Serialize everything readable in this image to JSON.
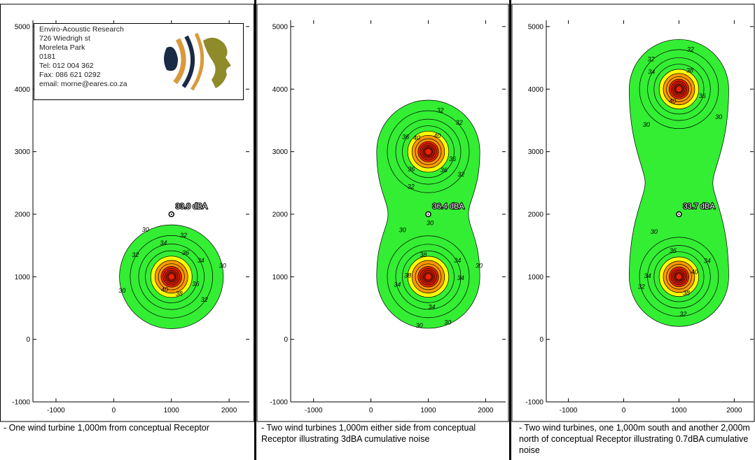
{
  "info_box": {
    "lines": [
      "Enviro-Acoustic Research",
      "726 Wiedrigh st",
      "Moreleta Park",
      "0181",
      "Tel: 012 004 362",
      "Fax: 086 621 0292",
      "email: morne@eares.co.za"
    ]
  },
  "chart_data": [
    {
      "type": "contour",
      "caption": "- One wind turbine 1,000m from conceptual Receptor",
      "xticks": [
        "-1000",
        "0",
        "1000",
        "2000"
      ],
      "yticks": [
        "5000",
        "4000",
        "3000",
        "2000",
        "1000",
        "0",
        "-1000"
      ],
      "xlim": [
        -1400,
        2350
      ],
      "ylim": [
        -1000,
        5100
      ],
      "sources": [
        [
          1000,
          1000
        ]
      ],
      "receptor": {
        "x": 1000,
        "y": 2000,
        "label": "33.0 dBA"
      },
      "contour_labels": [
        "30",
        "32",
        "34",
        "36",
        "38",
        "40",
        "30",
        "32",
        "34",
        "36",
        "30",
        "32"
      ],
      "colors": {
        "min_level": "#33ee33",
        "yellow": "#ffff00",
        "orange": "#ff9900",
        "red": "#ee2200"
      }
    },
    {
      "type": "contour",
      "caption": "- Two wind turbines 1,000m either side from conceptual Receptor illustrating 3dBA cumulative noise",
      "xticks": [
        "-1000",
        "0",
        "1000",
        "2000"
      ],
      "yticks": [
        "5000",
        "4000",
        "3000",
        "2000",
        "1000",
        "0",
        "-1000"
      ],
      "xlim": [
        -1400,
        2350
      ],
      "ylim": [
        -1000,
        5100
      ],
      "sources": [
        [
          1000,
          1000
        ],
        [
          1000,
          3000
        ]
      ],
      "receptor": {
        "x": 1000,
        "y": 2000,
        "label": "36.4 dBA"
      },
      "contour_labels": [
        "30",
        "32",
        "34",
        "36",
        "30",
        "32",
        "34",
        "36",
        "38",
        "40",
        "30",
        "32",
        "34",
        "36",
        "38",
        "40",
        "30",
        "32",
        "34",
        "36",
        "30"
      ],
      "colors": {
        "min_level": "#33ee33",
        "yellow": "#ffff00",
        "orange": "#ff9900",
        "red": "#ee2200"
      }
    },
    {
      "type": "contour",
      "caption": "- Two wind turbines, one 1,000m south and another 2,000m north of conceptual Receptor illustrating 0.7dBA cumulative noise",
      "xticks": [
        "-1000",
        "0",
        "1000",
        "2000"
      ],
      "yticks": [
        "5000",
        "4000",
        "3000",
        "2000",
        "1000",
        "0",
        "-1000"
      ],
      "xlim": [
        -1400,
        2350
      ],
      "ylim": [
        -1000,
        5100
      ],
      "sources": [
        [
          1000,
          1000
        ],
        [
          1000,
          4000
        ]
      ],
      "receptor": {
        "x": 1000,
        "y": 2000,
        "label": "33.7 dBA"
      },
      "contour_labels": [
        "30",
        "32",
        "34",
        "36",
        "38",
        "40",
        "32",
        "34",
        "36",
        "38",
        "40",
        "30",
        "32",
        "30",
        "34",
        "32"
      ],
      "colors": {
        "min_level": "#33ee33",
        "yellow": "#ffff00",
        "orange": "#ff9900",
        "red": "#ee2200"
      }
    }
  ]
}
